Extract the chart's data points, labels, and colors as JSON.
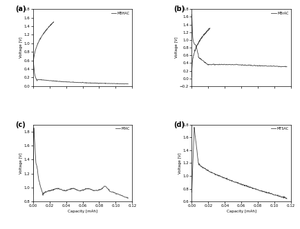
{
  "title_a": "(a)",
  "title_b": "(b)",
  "title_c": "(c)",
  "title_d": "(d)",
  "legend_a": "MBHAC",
  "legend_b": "MBrAC",
  "legend_c": "MIAC",
  "legend_d": "MTSAC",
  "xlabel": "Capacity [mAh]",
  "ylabel": "Voltage [V]",
  "line_color": "#444444",
  "background_color": "#ffffff",
  "xlim": [
    0,
    0.12
  ],
  "ylim_a": [
    0.0,
    1.8
  ],
  "ylim_b": [
    -0.2,
    1.8
  ],
  "ylim_c": [
    0.8,
    1.9
  ],
  "ylim_d": [
    0.6,
    1.8
  ],
  "yticks_a": [
    0.0,
    0.2,
    0.4,
    0.6,
    0.8,
    1.0,
    1.2,
    1.4,
    1.6,
    1.8
  ],
  "yticks_b": [
    -0.2,
    0.0,
    0.2,
    0.4,
    0.6,
    0.8,
    1.0,
    1.2,
    1.4,
    1.6,
    1.8
  ],
  "yticks_c": [
    0.8,
    1.0,
    1.2,
    1.4,
    1.6,
    1.8
  ],
  "yticks_d": [
    0.6,
    0.8,
    1.0,
    1.2,
    1.4,
    1.6,
    1.8
  ],
  "xticks": [
    0.0,
    0.02,
    0.04,
    0.06,
    0.08,
    0.1,
    0.12
  ]
}
